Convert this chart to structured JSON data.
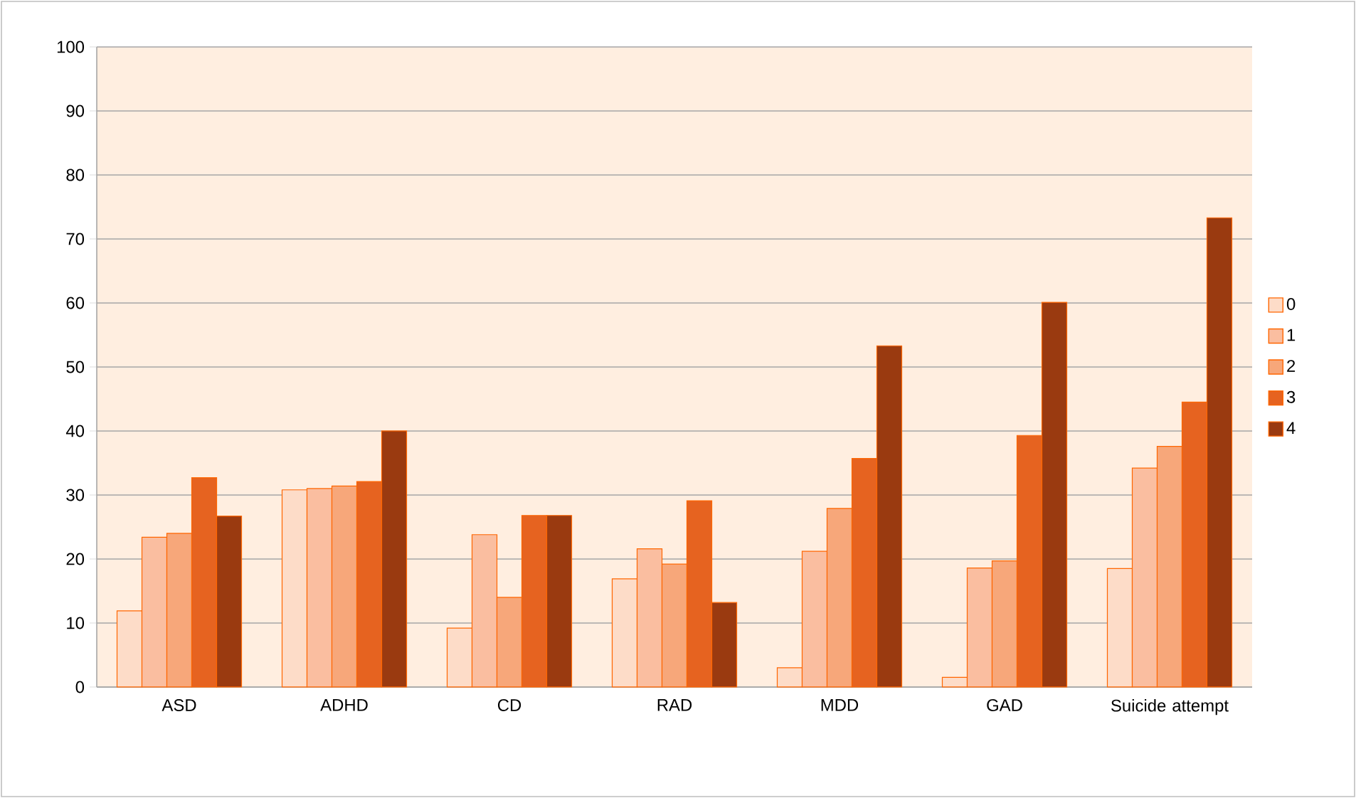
{
  "chart_data": {
    "type": "bar",
    "categories": [
      "ASD",
      "ADHD",
      "CD",
      "RAD",
      "MDD",
      "GAD",
      "Suicide attempt"
    ],
    "series": [
      {
        "name": "0",
        "color": "#fddcc8",
        "values": [
          11.9,
          30.8,
          9.2,
          16.9,
          3.0,
          1.5,
          18.5
        ]
      },
      {
        "name": "1",
        "color": "#fabea0",
        "values": [
          23.4,
          31.0,
          23.8,
          21.6,
          21.2,
          18.6,
          34.2
        ]
      },
      {
        "name": "2",
        "color": "#f7a77a",
        "values": [
          24.0,
          31.4,
          14.0,
          19.2,
          27.9,
          19.7,
          37.6
        ]
      },
      {
        "name": "3",
        "color": "#e66320",
        "values": [
          32.7,
          32.1,
          26.8,
          29.1,
          35.7,
          39.3,
          44.5
        ]
      },
      {
        "name": "4",
        "color": "#9a3a10",
        "values": [
          26.7,
          40.0,
          26.8,
          13.2,
          53.3,
          60.1,
          73.3
        ]
      }
    ],
    "ylim": [
      0,
      100
    ],
    "yticks": [
      0,
      10,
      20,
      30,
      40,
      50,
      60,
      70,
      80,
      90,
      100
    ],
    "grid": "y",
    "legend": "right"
  }
}
